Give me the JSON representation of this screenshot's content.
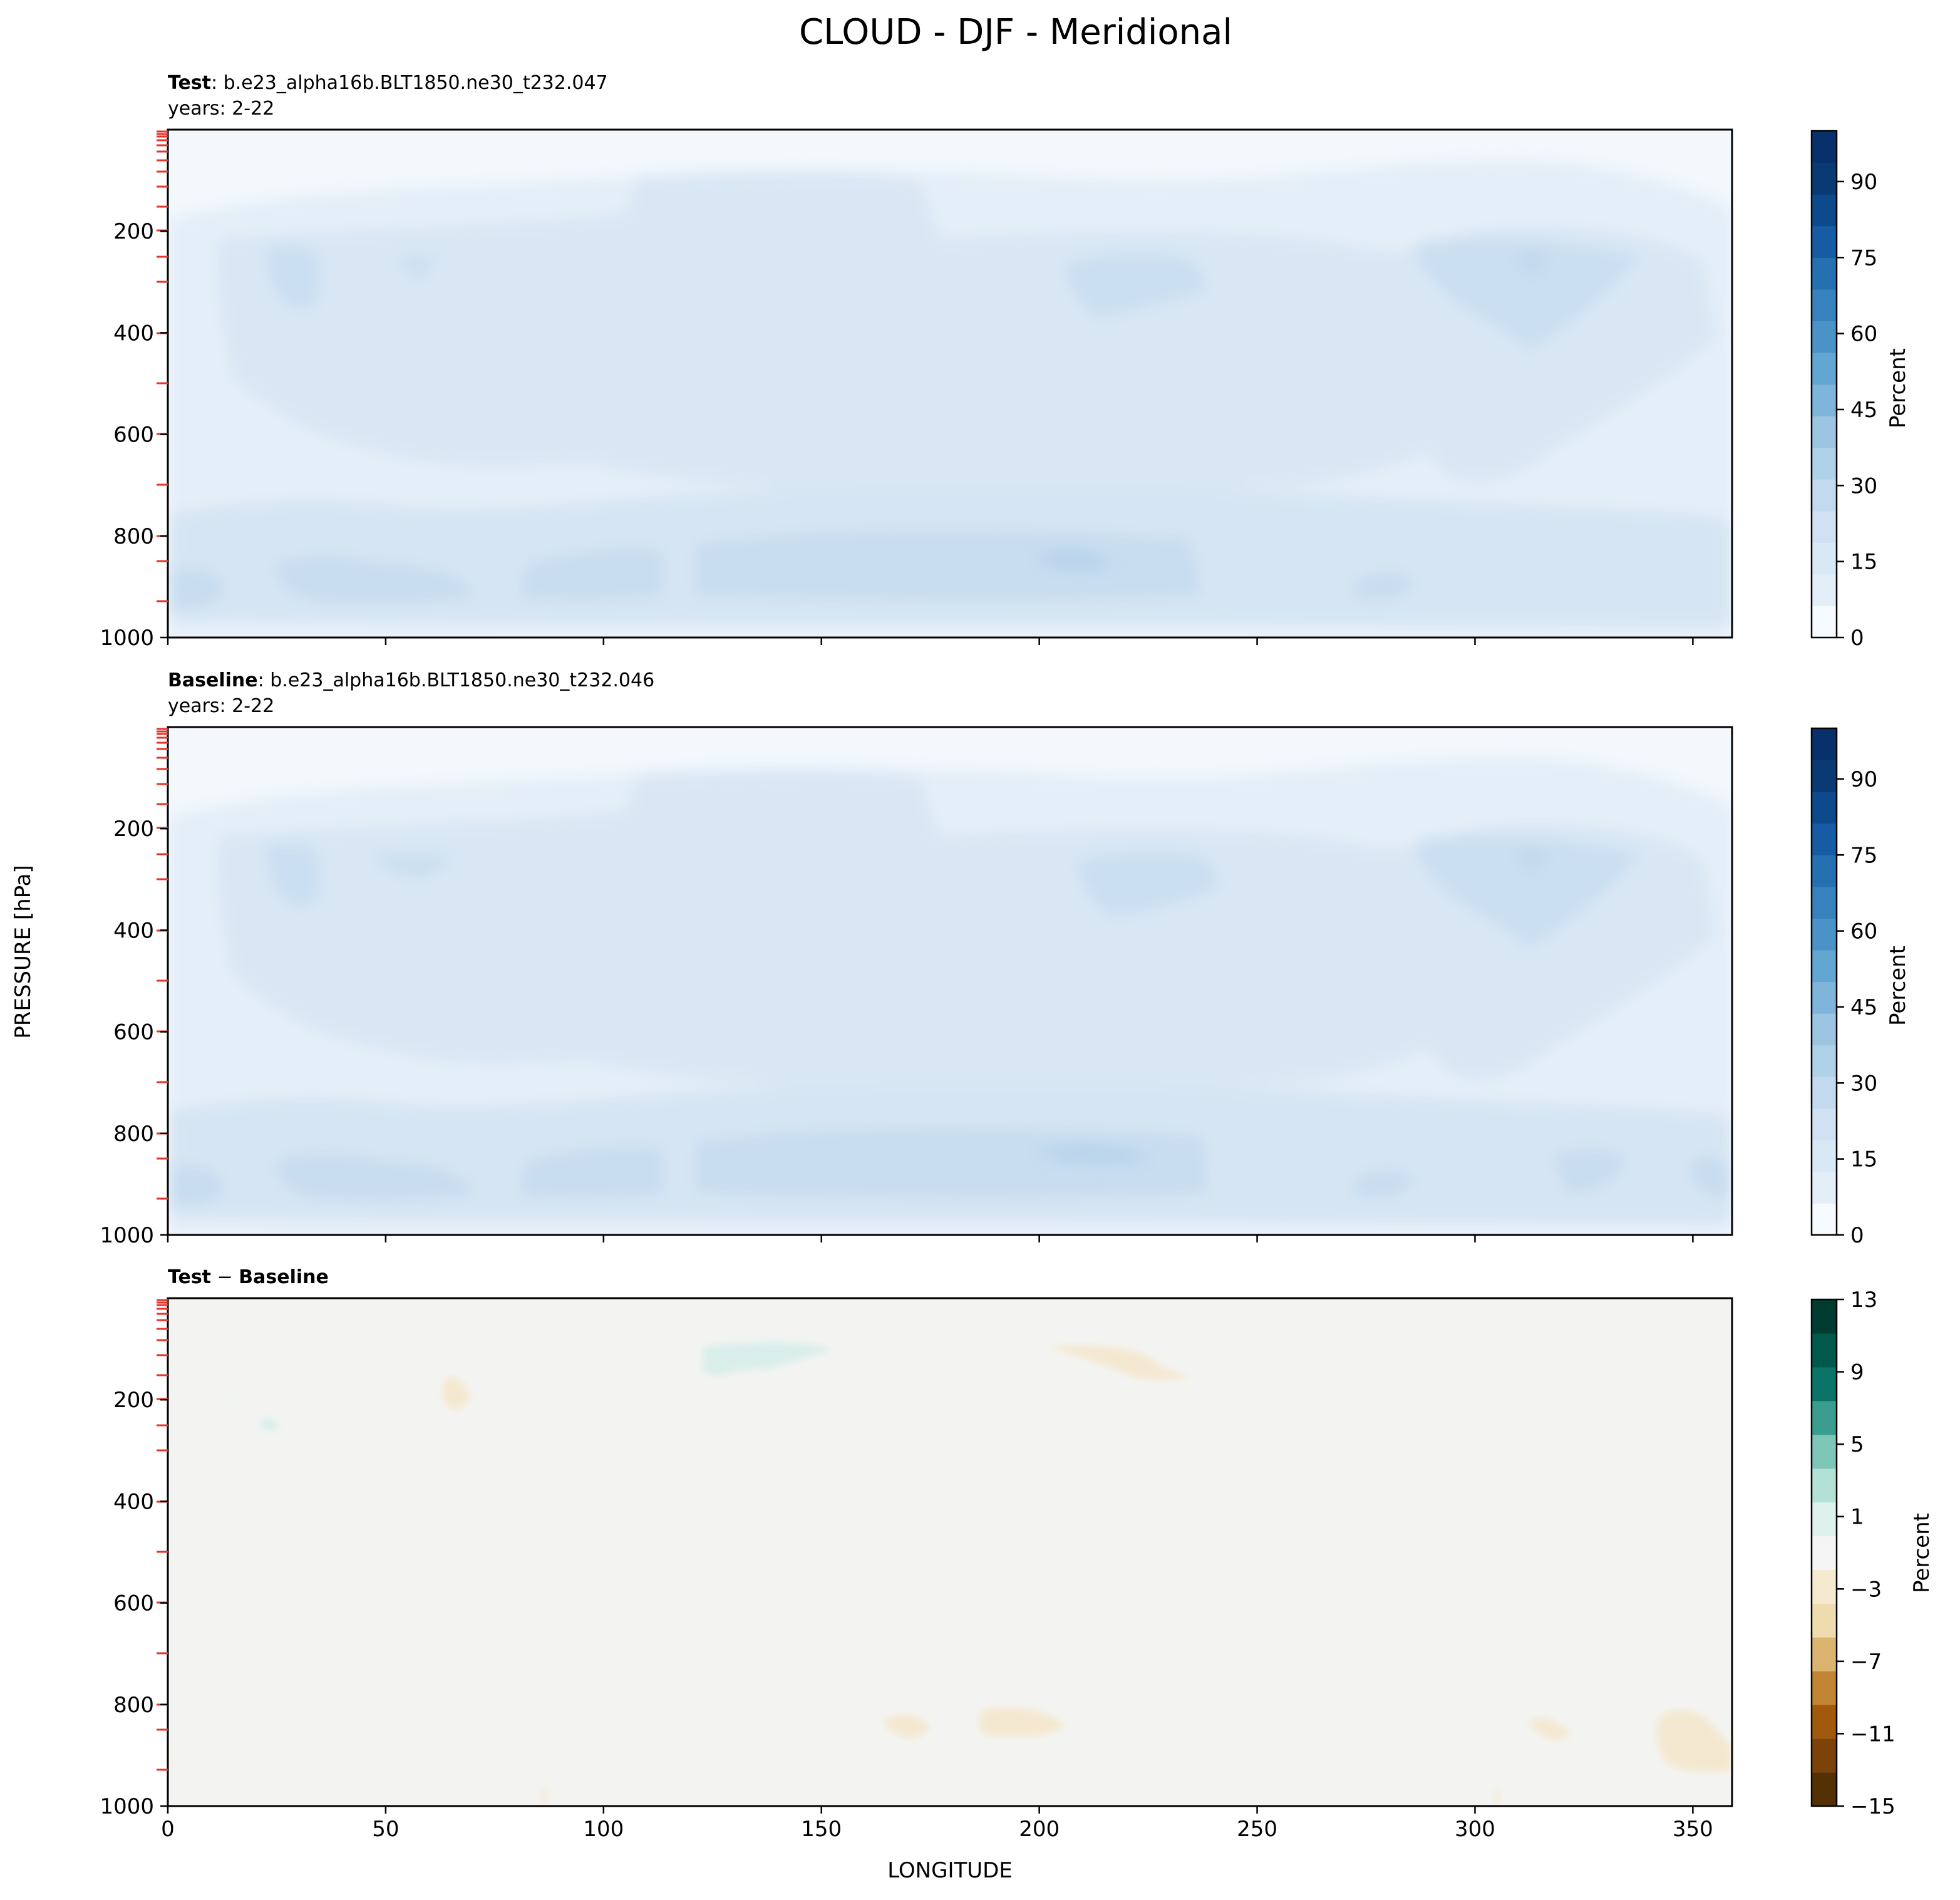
{
  "title": "CLOUD - DJF - Meridional",
  "y_axis_label": "PRESSURE [hPa]",
  "x_axis_label": "LONGITUDE",
  "panels": {
    "test": {
      "label_bold": "Test",
      "label_rest": ": b.e23_alpha16b.BLT1850.ne30_t232.047",
      "years": "years: 2-22"
    },
    "baseline": {
      "label_bold": "Baseline",
      "label_rest": ": b.e23_alpha16b.BLT1850.ne30_t232.046",
      "years": "years: 2-22"
    },
    "diff": {
      "label_bold_1": "Test",
      "label_minus": " − ",
      "label_bold_2": "Baseline"
    }
  },
  "colorbar_label": "Percent",
  "colors": {
    "blues": [
      "#f7fbff",
      "#e3eef9",
      "#d9e8f5",
      "#cfe1f2",
      "#c2d9ee",
      "#b0d2e8",
      "#9cc5e2",
      "#7fb5da",
      "#63a6d2",
      "#4b93c7",
      "#3781bd",
      "#2570b1",
      "#165ba3",
      "#0d4a8c",
      "#0a3a73",
      "#08306b"
    ],
    "brbg": [
      "#543005",
      "#7b4209",
      "#a1590e",
      "#c18535",
      "#dbb570",
      "#eedcaf",
      "#f5ead0",
      "#f5f5f5",
      "#dff1ed",
      "#b4e1d6",
      "#7ec6b6",
      "#3b9d8f",
      "#0b7468",
      "#01594c",
      "#003c30"
    ],
    "panel_bg_abs": "#f3f8fd",
    "panel_bg_diff": "#f3f4f2",
    "tick_marker": "#e8332a"
  },
  "chart_data": [
    {
      "type": "heatmap",
      "panel": "Test",
      "xlabel": "",
      "ylabel": "PRESSURE [hPa]",
      "xlim": [
        0,
        359
      ],
      "ylim": [
        1000,
        0
      ],
      "x_ticks": [
        0,
        50,
        100,
        150,
        200,
        250,
        300,
        350
      ],
      "y_ticks": [
        200,
        400,
        600,
        800,
        1000
      ],
      "colorbar": {
        "label": "Percent",
        "ticks": [
          0,
          15,
          30,
          45,
          60,
          75,
          90
        ],
        "range": [
          0,
          100
        ],
        "levels": 16
      },
      "features": [
        {
          "lon_range": [
            0,
            360
          ],
          "p_range": [
            0,
            170
          ],
          "value": 2
        },
        {
          "lon_range": [
            15,
            345
          ],
          "p_range": [
            170,
            780
          ],
          "value": 11
        },
        {
          "lon_range": [
            20,
            35
          ],
          "p_range": [
            240,
            340
          ],
          "value": 15
        },
        {
          "lon_range": [
            200,
            235
          ],
          "p_range": [
            250,
            350
          ],
          "value": 15
        },
        {
          "lon_range": [
            295,
            330
          ],
          "p_range": [
            200,
            450
          ],
          "value": 15
        },
        {
          "lon_range": [
            0,
            360
          ],
          "p_range": [
            800,
            960
          ],
          "value": 14
        },
        {
          "lon_range": [
            120,
            240
          ],
          "p_range": [
            820,
            920
          ],
          "value": 17
        }
      ]
    },
    {
      "type": "heatmap",
      "panel": "Baseline",
      "xlabel": "",
      "ylabel": "PRESSURE [hPa]",
      "xlim": [
        0,
        359
      ],
      "ylim": [
        1000,
        0
      ],
      "x_ticks": [
        0,
        50,
        100,
        150,
        200,
        250,
        300,
        350
      ],
      "y_ticks": [
        200,
        400,
        600,
        800,
        1000
      ],
      "colorbar": {
        "label": "Percent",
        "ticks": [
          0,
          15,
          30,
          45,
          60,
          75,
          90
        ],
        "range": [
          0,
          100
        ],
        "levels": 16
      },
      "features": [
        {
          "lon_range": [
            0,
            360
          ],
          "p_range": [
            0,
            170
          ],
          "value": 2
        },
        {
          "lon_range": [
            15,
            345
          ],
          "p_range": [
            170,
            780
          ],
          "value": 11
        },
        {
          "lon_range": [
            20,
            35
          ],
          "p_range": [
            240,
            340
          ],
          "value": 15
        },
        {
          "lon_range": [
            205,
            240
          ],
          "p_range": [
            250,
            370
          ],
          "value": 15
        },
        {
          "lon_range": [
            295,
            330
          ],
          "p_range": [
            200,
            450
          ],
          "value": 15
        },
        {
          "lon_range": [
            0,
            360
          ],
          "p_range": [
            800,
            960
          ],
          "value": 14
        },
        {
          "lon_range": [
            120,
            240
          ],
          "p_range": [
            820,
            920
          ],
          "value": 17
        }
      ]
    },
    {
      "type": "heatmap",
      "panel": "Test − Baseline",
      "xlabel": "LONGITUDE",
      "ylabel": "PRESSURE [hPa]",
      "xlim": [
        0,
        359
      ],
      "ylim": [
        1000,
        0
      ],
      "x_ticks": [
        0,
        50,
        100,
        150,
        200,
        250,
        300,
        350
      ],
      "y_ticks": [
        200,
        400,
        600,
        800,
        1000
      ],
      "colorbar": {
        "label": "Percent",
        "ticks": [
          -15,
          -11,
          -7,
          -3,
          1,
          5,
          9,
          13
        ],
        "range": [
          -15,
          13
        ],
        "levels": 14
      },
      "features": [
        {
          "lon": 140,
          "p": 125,
          "value": 2
        },
        {
          "lon": 218,
          "p": 125,
          "value": -2
        },
        {
          "lon": 67,
          "p": 190,
          "value": -2
        },
        {
          "lon": 23,
          "p": 245,
          "value": 2
        },
        {
          "lon": 175,
          "p": 850,
          "value": -2
        },
        {
          "lon": 197,
          "p": 845,
          "value": -2
        },
        {
          "lon": 318,
          "p": 855,
          "value": -2
        },
        {
          "lon": 350,
          "p": 880,
          "value": -2
        }
      ]
    }
  ]
}
